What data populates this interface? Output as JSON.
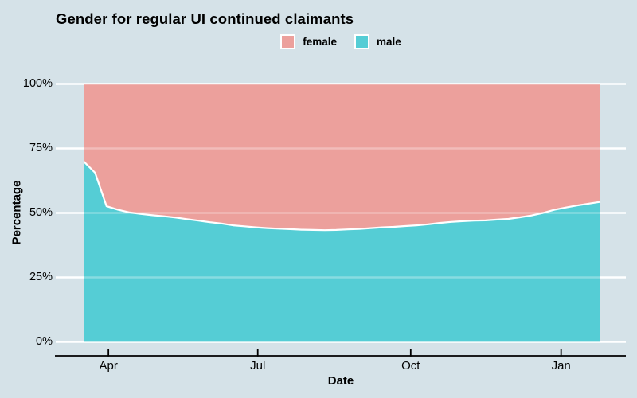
{
  "title": "Gender for regular UI continued claimants",
  "legend": {
    "items": [
      {
        "label": "female",
        "color": "#eca09c"
      },
      {
        "label": "male",
        "color": "#55cdd5"
      }
    ]
  },
  "axes": {
    "x_label": "Date",
    "y_label": "Percentage"
  },
  "colors": {
    "background": "#d5e2e8",
    "gridline": "#ffffff",
    "boundary_line": "#ffffff",
    "axis_line": "#000000",
    "text": "#000000"
  },
  "chart_data": {
    "type": "area",
    "stacked": "percent",
    "title": "Gender for regular UI continued claimants",
    "xlabel": "Date",
    "ylabel": "Percentage",
    "ylim": [
      0,
      100
    ],
    "grid": "horizontal white gridlines, no vertical gridlines",
    "legend_position": "top-center",
    "y_ticks": [
      {
        "label": "0%",
        "value": 0
      },
      {
        "label": "25%",
        "value": 25
      },
      {
        "label": "50%",
        "value": 50
      },
      {
        "label": "75%",
        "value": 75
      },
      {
        "label": "100%",
        "value": 100
      }
    ],
    "x_ticks": [
      {
        "label": "Apr",
        "pos": 0.048
      },
      {
        "label": "Jul",
        "pos": 0.337
      },
      {
        "label": "Oct",
        "pos": 0.633
      },
      {
        "label": "Jan",
        "pos": 0.924
      }
    ],
    "series": [
      {
        "name": "male",
        "color": "#55cdd5",
        "values": [
          70.0,
          65.6,
          52.6,
          51.2,
          50.2,
          49.6,
          49.1,
          48.7,
          48.2,
          47.6,
          47.0,
          46.4,
          45.9,
          45.2,
          44.8,
          44.4,
          44.1,
          43.9,
          43.7,
          43.5,
          43.4,
          43.3,
          43.4,
          43.6,
          43.8,
          44.1,
          44.4,
          44.6,
          44.9,
          45.2,
          45.6,
          46.1,
          46.5,
          46.8,
          47.0,
          47.1,
          47.4,
          47.7,
          48.3,
          49.0,
          50.0,
          51.2,
          52.1,
          52.9,
          53.6,
          54.3
        ]
      },
      {
        "name": "female",
        "color": "#eca09c",
        "values": [
          30.0,
          34.4,
          47.4,
          48.8,
          49.8,
          50.4,
          50.9,
          51.3,
          51.8,
          52.4,
          53.0,
          53.6,
          54.1,
          54.8,
          55.2,
          55.6,
          55.9,
          56.1,
          56.3,
          56.5,
          56.6,
          56.7,
          56.6,
          56.4,
          56.2,
          55.9,
          55.6,
          55.4,
          55.1,
          54.8,
          54.4,
          53.9,
          53.5,
          53.2,
          53.0,
          52.9,
          52.6,
          52.3,
          51.7,
          51.0,
          50.0,
          48.8,
          47.9,
          47.1,
          46.4,
          45.7
        ]
      }
    ]
  }
}
